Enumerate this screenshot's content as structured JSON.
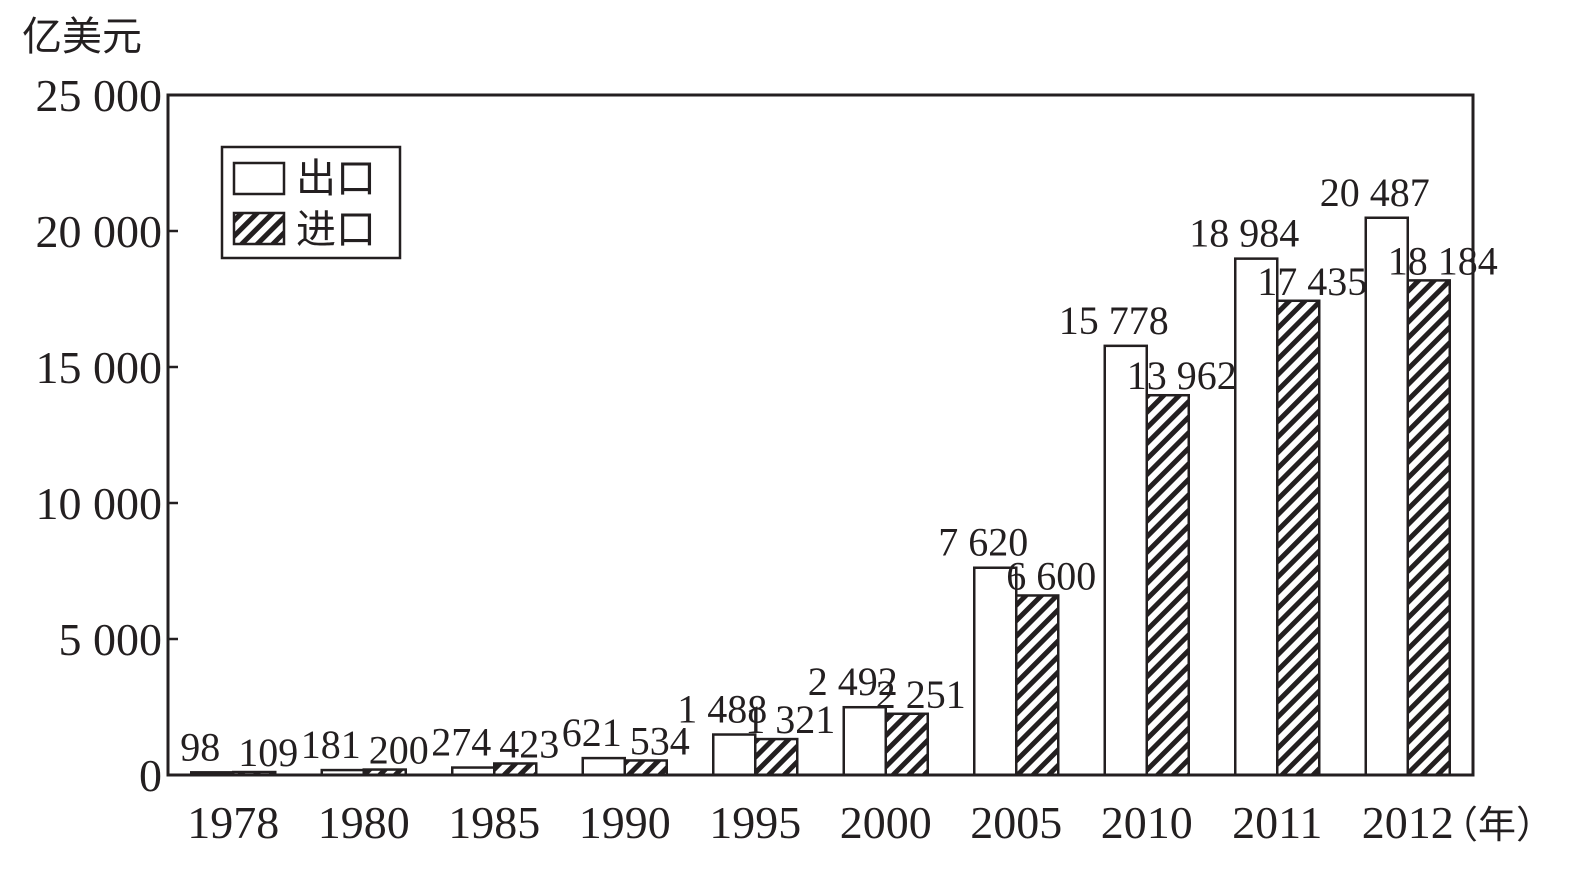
{
  "chart_data": {
    "type": "bar",
    "unit_label": "亿美元",
    "x_unit_label": "（年）",
    "categories": [
      "1978",
      "1980",
      "1985",
      "1990",
      "1995",
      "2000",
      "2005",
      "2010",
      "2011",
      "2012"
    ],
    "series": [
      {
        "name": "出口",
        "fill": "none",
        "values": [
          98,
          181,
          274,
          621,
          1488,
          2492,
          7620,
          15778,
          18984,
          20487
        ]
      },
      {
        "name": "进口",
        "fill": "hatched",
        "values": [
          109,
          200,
          423,
          534,
          1321,
          2251,
          6600,
          13962,
          17435,
          18184
        ]
      }
    ],
    "value_labels": {
      "出口": [
        "98",
        "181",
        "274",
        "621",
        "1 488",
        "2 492",
        "7 620",
        "15 778",
        "18 984",
        "20 487"
      ],
      "进口": [
        "109",
        "200",
        "423",
        "534",
        "1 321",
        "2 251",
        "6 600",
        "13 962",
        "17 435",
        "18 184"
      ]
    },
    "ylim": [
      0,
      25000
    ],
    "yticks": [
      0,
      5000,
      10000,
      15000,
      20000,
      25000
    ],
    "ytick_labels": [
      "0",
      "5 000",
      "10 000",
      "15 000",
      "20 000",
      "25 000"
    ],
    "grid": false,
    "legend_position": "top-left",
    "colors": {
      "ink": "#231f20",
      "background": "#ffffff"
    }
  }
}
